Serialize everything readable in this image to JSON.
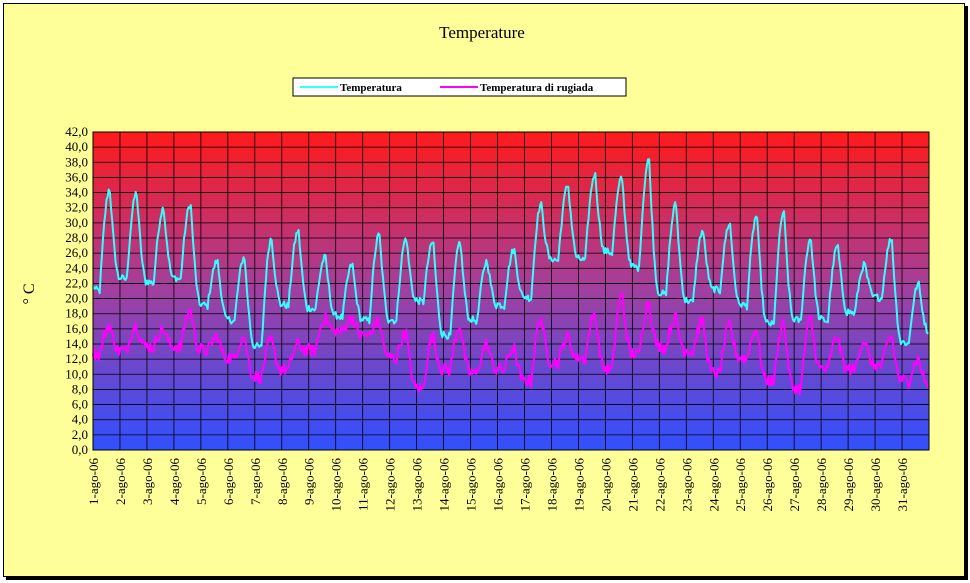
{
  "chart_data": {
    "type": "line",
    "title": "Temperature",
    "ylabel": "° C",
    "xlabel": "",
    "ylim": [
      0,
      42
    ],
    "ytick_step": 2,
    "ytick_labels": [
      "0,0",
      "2,0",
      "4,0",
      "6,0",
      "8,0",
      "10,0",
      "12,0",
      "14,0",
      "16,0",
      "18,0",
      "20,0",
      "22,0",
      "24,0",
      "26,0",
      "28,0",
      "30,0",
      "32,0",
      "34,0",
      "36,0",
      "38,0",
      "40,0",
      "42,0"
    ],
    "categories": [
      "1-ago-06",
      "2-ago-06",
      "3-ago-06",
      "4-ago-06",
      "5-ago-06",
      "6-ago-06",
      "7-ago-06",
      "8-ago-06",
      "9-ago-06",
      "10-ago-06",
      "11-ago-06",
      "12-ago-06",
      "13-ago-06",
      "14-ago-06",
      "15-ago-06",
      "16-ago-06",
      "17-ago-06",
      "18-ago-06",
      "19-ago-06",
      "20-ago-06",
      "21-ago-06",
      "22-ago-06",
      "23-ago-06",
      "24-ago-06",
      "25-ago-06",
      "26-ago-06",
      "27-ago-06",
      "28-ago-06",
      "29-ago-06",
      "30-ago-06",
      "31-ago-06"
    ],
    "grid": true,
    "legend_position": "top-center",
    "background_gradient": {
      "top": "#ff1a1a",
      "middle": "#a040a0",
      "bottom": "#3050ff"
    },
    "series": [
      {
        "name": "Temperatura",
        "color": "#33ffff",
        "daily_min": [
          21.0,
          22.5,
          22.0,
          22.5,
          19.0,
          17.0,
          13.5,
          19.0,
          18.5,
          17.5,
          17.0,
          17.0,
          19.5,
          15.0,
          17.0,
          19.0,
          20.0,
          25.0,
          25.0,
          26.0,
          24.0,
          20.5,
          19.5,
          21.0,
          19.0,
          16.5,
          17.0,
          17.0,
          18.0,
          20.0,
          14.0
        ],
        "daily_max": [
          34.5,
          34.0,
          32.0,
          32.5,
          25.0,
          25.5,
          28.0,
          29.0,
          25.5,
          24.5,
          28.5,
          28.0,
          27.5,
          27.5,
          25.0,
          26.5,
          32.5,
          35.0,
          36.5,
          36.0,
          38.5,
          32.5,
          29.0,
          30.0,
          31.0,
          31.5,
          28.0,
          27.0,
          24.5,
          28.0,
          22.0
        ],
        "end_value": 15.5
      },
      {
        "name": "Temperatura di rugiada",
        "color": "#ff00ff",
        "daily_min": [
          12.5,
          13.0,
          13.5,
          13.5,
          13.0,
          12.0,
          9.5,
          10.5,
          13.0,
          15.5,
          15.0,
          12.0,
          8.0,
          10.5,
          10.0,
          10.5,
          9.0,
          11.5,
          12.0,
          10.5,
          12.5,
          13.5,
          13.0,
          10.0,
          12.0,
          9.0,
          8.0,
          10.5,
          10.5,
          11.0,
          9.0
        ],
        "daily_max": [
          16.5,
          16.5,
          16.0,
          18.5,
          15.0,
          15.0,
          14.5,
          14.0,
          17.5,
          17.5,
          17.0,
          15.5,
          15.0,
          16.5,
          14.0,
          13.5,
          17.5,
          15.0,
          18.0,
          20.5,
          19.5,
          17.5,
          17.0,
          16.5,
          16.0,
          17.0,
          17.5,
          15.0,
          14.5,
          15.0,
          12.0
        ],
        "end_value": 8.5
      }
    ]
  }
}
